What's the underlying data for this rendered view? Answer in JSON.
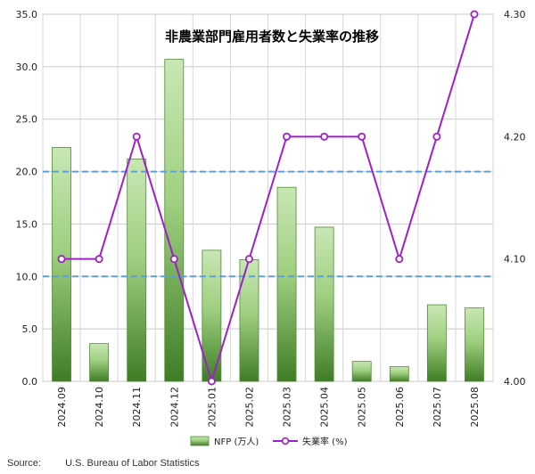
{
  "chart_data": {
    "type": "bar+line",
    "title": "非農業部門雇用者数と失業率の推移",
    "categories": [
      "2024.09",
      "2024.10",
      "2024.11",
      "2024.12",
      "2025.01",
      "2025.02",
      "2025.03",
      "2025.04",
      "2025.05",
      "2025.06",
      "2025.07",
      "2025.08"
    ],
    "series": [
      {
        "name": "NFP (万人)",
        "type": "bar",
        "axis": "left",
        "color": "#5a9e3e",
        "values": [
          22.3,
          3.6,
          21.2,
          30.7,
          12.5,
          11.6,
          18.5,
          14.7,
          1.9,
          1.4,
          7.3,
          7.0
        ]
      },
      {
        "name": "失業率 (%)",
        "type": "line",
        "axis": "right",
        "color": "#a020c8",
        "values": [
          4.1,
          4.1,
          4.2,
          4.1,
          4.0,
          4.1,
          4.2,
          4.2,
          4.2,
          4.1,
          4.2,
          4.3
        ]
      }
    ],
    "y_left": {
      "min": 0,
      "max": 35,
      "step": 5,
      "ticks": [
        "0.0",
        "5.0",
        "10.0",
        "15.0",
        "20.0",
        "25.0",
        "30.0",
        "35.0"
      ]
    },
    "y_right": {
      "min": 4.0,
      "max": 4.3,
      "ticks": [
        "4.00",
        "4.10",
        "4.20",
        "4.30"
      ]
    },
    "reference_lines_left": [
      10,
      20
    ],
    "grid": true,
    "legend_position": "bottom"
  },
  "source": {
    "label": "Source:",
    "text": "U.S. Bureau of Labor Statistics"
  }
}
